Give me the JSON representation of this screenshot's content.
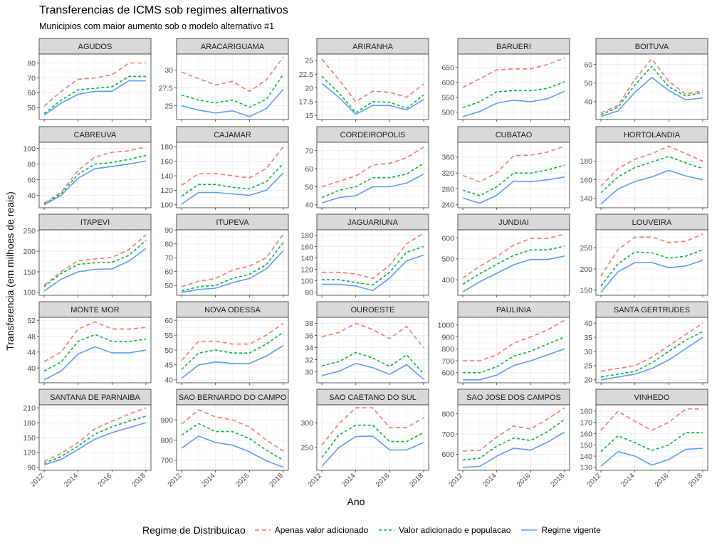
{
  "title": "Transferencias de ICMS sob regimes alternativos",
  "subtitle": "Municipios com maior aumento sob o modelo alternativo #1",
  "xlabel": "Ano",
  "ylabel": "Transferencia (em milhoes de reais)",
  "legend": {
    "title": "Regime de Distribuicao",
    "items": [
      {
        "name": "Apenas valor adicionado",
        "color": "#F8766D",
        "dash": "long-dash"
      },
      {
        "name": "Valor adicionado e populacao",
        "color": "#00BA38",
        "dash": "dashed"
      },
      {
        "name": "Regime vigente",
        "color": "#619CFF",
        "dash": "solid"
      }
    ]
  },
  "chart_data": {
    "type": "line",
    "x": [
      2012,
      2013,
      2014,
      2015,
      2016,
      2017,
      2018
    ],
    "x_ticks": [
      2012,
      2014,
      2016,
      2018
    ],
    "grid": true,
    "legend_position": "bottom",
    "series_names": [
      "Apenas valor adicionado",
      "Valor adicionado e populacao",
      "Regime vigente"
    ],
    "panels": [
      {
        "name": "AGUDOS",
        "ticks": [
          50,
          60,
          70,
          80
        ],
        "ylim": [
          44,
          84
        ],
        "series": [
          [
            51,
            61,
            69,
            70,
            72,
            80,
            80
          ],
          [
            46,
            55,
            62,
            63,
            64,
            71,
            71
          ],
          [
            45,
            53,
            59,
            61,
            61,
            68,
            68
          ]
        ]
      },
      {
        "name": "ARACARIGUAMA",
        "ticks": [
          25.0,
          27.5,
          30.0
        ],
        "ylim": [
          23.5,
          31.8
        ],
        "series": [
          [
            29.7,
            28.8,
            27.9,
            28.4,
            27.0,
            28.6,
            31.8
          ],
          [
            26.5,
            25.8,
            25.4,
            25.8,
            24.8,
            25.9,
            29.4
          ],
          [
            25.0,
            24.4,
            24.0,
            24.3,
            23.5,
            24.6,
            27.3
          ]
        ]
      },
      {
        "name": "ARIRANHA",
        "ticks": [
          15.0,
          17.5,
          20.0,
          22.5,
          25.0
        ],
        "ylim": [
          14.8,
          25.6
        ],
        "series": [
          [
            25.2,
            21.5,
            17.5,
            19.4,
            19.2,
            18.3,
            20.7
          ],
          [
            22.1,
            19.1,
            15.5,
            17.5,
            17.4,
            16.3,
            18.7
          ],
          [
            20.8,
            18.3,
            15.2,
            16.8,
            16.8,
            16.0,
            17.9
          ]
        ]
      },
      {
        "name": "BARUERI",
        "ticks": [
          500,
          550,
          600,
          650
        ],
        "ylim": [
          485,
          685
        ],
        "series": [
          [
            583,
            612,
            642,
            645,
            645,
            660,
            682
          ],
          [
            515,
            535,
            568,
            572,
            572,
            580,
            602
          ],
          [
            485,
            502,
            530,
            540,
            535,
            545,
            570
          ]
        ]
      },
      {
        "name": "BOITUVA",
        "ticks": [
          40,
          50,
          60
        ],
        "ylim": [
          32,
          64
        ],
        "series": [
          [
            34,
            38,
            52,
            63,
            51,
            44,
            46
          ],
          [
            33,
            37,
            49,
            59,
            48,
            43,
            45
          ],
          [
            32,
            35,
            45,
            53,
            46,
            41,
            42
          ]
        ]
      },
      {
        "name": "CABREUVA",
        "ticks": [
          40,
          60,
          80,
          100
        ],
        "ylim": [
          28,
          104
        ],
        "series": [
          [
            30,
            44,
            72,
            89,
            95,
            97,
            102
          ],
          [
            29,
            42,
            67,
            80,
            82,
            86,
            91
          ],
          [
            28,
            40,
            62,
            74,
            77,
            80,
            84
          ]
        ]
      },
      {
        "name": "CAJAMAR",
        "ticks": [
          100,
          120,
          140,
          160,
          180
        ],
        "ylim": [
          100,
          182
        ],
        "series": [
          [
            127,
            143,
            143,
            140,
            137,
            150,
            180
          ],
          [
            112,
            128,
            128,
            124,
            122,
            132,
            157
          ],
          [
            101,
            117,
            117,
            115,
            113,
            120,
            144
          ]
        ]
      },
      {
        "name": "CORDEIROPOLIS",
        "ticks": [
          40,
          50,
          60,
          70
        ],
        "ylim": [
          40,
          73
        ],
        "series": [
          [
            50,
            53,
            56,
            62,
            63,
            66,
            72
          ],
          [
            44,
            48,
            50,
            55,
            55,
            57,
            63
          ],
          [
            41,
            44,
            45,
            50,
            50,
            52,
            57
          ]
        ]
      },
      {
        "name": "CUBATAO",
        "ticks": [
          240,
          280,
          320,
          360
        ],
        "ylim": [
          240,
          390
        ],
        "series": [
          [
            314,
            298,
            321,
            364,
            365,
            373,
            388
          ],
          [
            277,
            263,
            285,
            320,
            320,
            328,
            340
          ],
          [
            257,
            244,
            264,
            300,
            298,
            303,
            310
          ]
        ]
      },
      {
        "name": "HORTOLANDIA",
        "ticks": [
          140,
          160,
          180
        ],
        "ylim": [
          133,
          197
        ],
        "series": [
          [
            153,
            172,
            182,
            188,
            196,
            188,
            180
          ],
          [
            146,
            163,
            173,
            179,
            185,
            178,
            172
          ],
          [
            134,
            150,
            158,
            163,
            170,
            164,
            160
          ]
        ]
      },
      {
        "name": "ITAPEVI",
        "ticks": [
          100,
          150,
          200,
          250
        ],
        "ylim": [
          100,
          245
        ],
        "series": [
          [
            117,
            150,
            177,
            181,
            185,
            204,
            240
          ],
          [
            114,
            146,
            168,
            172,
            173,
            190,
            226
          ],
          [
            103,
            132,
            150,
            156,
            157,
            176,
            207
          ]
        ]
      },
      {
        "name": "ITUPEVA",
        "ticks": [
          50,
          60,
          70,
          80,
          90
        ],
        "ylim": [
          45,
          88
        ],
        "series": [
          [
            49,
            53,
            55,
            61,
            64,
            70,
            87
          ],
          [
            46,
            49,
            50,
            55,
            58,
            65,
            81
          ],
          [
            45,
            47,
            48,
            52,
            55,
            62,
            75
          ]
        ]
      },
      {
        "name": "JAGUARIUNA",
        "ticks": [
          80,
          100,
          120,
          140,
          160,
          180
        ],
        "ylim": [
          80,
          184
        ],
        "series": [
          [
            115,
            115,
            112,
            104,
            127,
            165,
            183
          ],
          [
            102,
            102,
            97,
            93,
            115,
            150,
            160
          ],
          [
            94,
            94,
            91,
            83,
            105,
            135,
            145
          ]
        ]
      },
      {
        "name": "JUNDIAI",
        "ticks": [
          400,
          500,
          600
        ],
        "ylim": [
          340,
          625
        ],
        "series": [
          [
            408,
            465,
            511,
            566,
            598,
            598,
            618
          ],
          [
            379,
            429,
            474,
            517,
            543,
            543,
            561
          ],
          [
            342,
            391,
            431,
            472,
            497,
            497,
            514
          ]
        ]
      },
      {
        "name": "LOUVEIRA",
        "ticks": [
          150,
          200,
          250
        ],
        "ylim": [
          145,
          285
        ],
        "series": [
          [
            183,
            245,
            275,
            275,
            262,
            265,
            282
          ],
          [
            160,
            212,
            240,
            238,
            225,
            230,
            245
          ],
          [
            145,
            193,
            215,
            215,
            203,
            207,
            220
          ]
        ]
      },
      {
        "name": "MONTE MOR",
        "ticks": [
          40,
          44,
          48,
          52
        ],
        "ylim": [
          37,
          52
        ],
        "series": [
          [
            41.6,
            44.0,
            49.8,
            51.6,
            49.8,
            49.8,
            50.2
          ],
          [
            39.2,
            41.5,
            46.7,
            48.4,
            46.7,
            46.6,
            47.3
          ],
          [
            37.0,
            39.2,
            43.5,
            45.3,
            43.8,
            43.8,
            44.5
          ]
        ]
      },
      {
        "name": "NOVA ODESSA",
        "ticks": [
          40,
          45,
          50,
          55,
          60
        ],
        "ylim": [
          40,
          60
        ],
        "series": [
          [
            46.5,
            53,
            53,
            52,
            52,
            55,
            59
          ],
          [
            43.5,
            49,
            50,
            49,
            49,
            52,
            56
          ],
          [
            40.5,
            45,
            46,
            45.5,
            45.5,
            48,
            51.5
          ]
        ]
      },
      {
        "name": "OUROESTE",
        "ticks": [
          30,
          32,
          34,
          36,
          38
        ],
        "ylim": [
          28.7,
          38.5
        ],
        "series": [
          [
            35.8,
            36.5,
            38.0,
            37.0,
            35.5,
            37.5,
            34.0
          ],
          [
            31.0,
            31.7,
            33.2,
            32.3,
            30.9,
            32.8,
            29.7
          ],
          [
            29.4,
            30.1,
            31.4,
            30.7,
            29.6,
            31.2,
            28.8
          ]
        ]
      },
      {
        "name": "PAULINIA",
        "ticks": [
          600,
          700,
          800,
          900,
          1000
        ],
        "ylim": [
          540,
          1040
        ],
        "series": [
          [
            700,
            700,
            750,
            850,
            900,
            960,
            1040
          ],
          [
            600,
            600,
            650,
            740,
            780,
            840,
            900
          ],
          [
            540,
            540,
            580,
            660,
            700,
            750,
            800
          ]
        ]
      },
      {
        "name": "SANTA GERTRUDES",
        "ticks": [
          20,
          25,
          30,
          35,
          40
        ],
        "ylim": [
          20,
          41
        ],
        "series": [
          [
            23,
            24,
            25,
            28,
            32,
            36,
            40
          ],
          [
            21,
            22,
            23,
            26,
            30,
            34,
            37
          ],
          [
            20,
            21,
            22,
            24,
            27,
            31,
            35
          ]
        ]
      },
      {
        "name": "SANTANA DE PARNAIBA",
        "ticks": [
          90,
          120,
          150,
          180,
          210
        ],
        "ylim": [
          90,
          210
        ],
        "series": [
          [
            102,
            118,
            140,
            168,
            183,
            197,
            210
          ],
          [
            98,
            112,
            133,
            157,
            172,
            183,
            193
          ],
          [
            95,
            106,
            126,
            147,
            160,
            170,
            180
          ]
        ]
      },
      {
        "name": "SAO BERNARDO DO CAMPO",
        "ticks": [
          700,
          800,
          900
        ],
        "ylim": [
          665,
          960
        ],
        "series": [
          [
            880,
            950,
            915,
            900,
            865,
            800,
            745
          ],
          [
            825,
            882,
            842,
            842,
            808,
            750,
            700
          ],
          [
            760,
            820,
            788,
            775,
            742,
            698,
            665
          ]
        ]
      },
      {
        "name": "SAO CAETANO DO SUL",
        "ticks": [
          250,
          300
        ],
        "ylim": [
          210,
          330
        ],
        "series": [
          [
            255,
            298,
            330,
            330,
            290,
            290,
            310
          ],
          [
            230,
            275,
            295,
            295,
            262,
            262,
            280
          ],
          [
            212,
            250,
            272,
            273,
            245,
            245,
            260
          ]
        ]
      },
      {
        "name": "SAO JOSE DOS CAMPOS",
        "ticks": [
          600,
          700,
          800
        ],
        "ylim": [
          535,
          830
        ],
        "series": [
          [
            615,
            620,
            685,
            740,
            725,
            775,
            830
          ],
          [
            572,
            580,
            640,
            680,
            668,
            712,
            772
          ],
          [
            535,
            540,
            590,
            630,
            620,
            660,
            710
          ]
        ]
      },
      {
        "name": "VINHEDO",
        "ticks": [
          130,
          140,
          150,
          160,
          170,
          180
        ],
        "ylim": [
          130,
          183
        ],
        "series": [
          [
            163,
            180,
            171,
            163,
            170,
            182,
            182
          ],
          [
            144,
            158,
            152,
            145,
            150,
            161,
            161
          ],
          [
            131,
            144,
            140,
            132,
            137,
            146,
            147
          ]
        ]
      }
    ]
  }
}
